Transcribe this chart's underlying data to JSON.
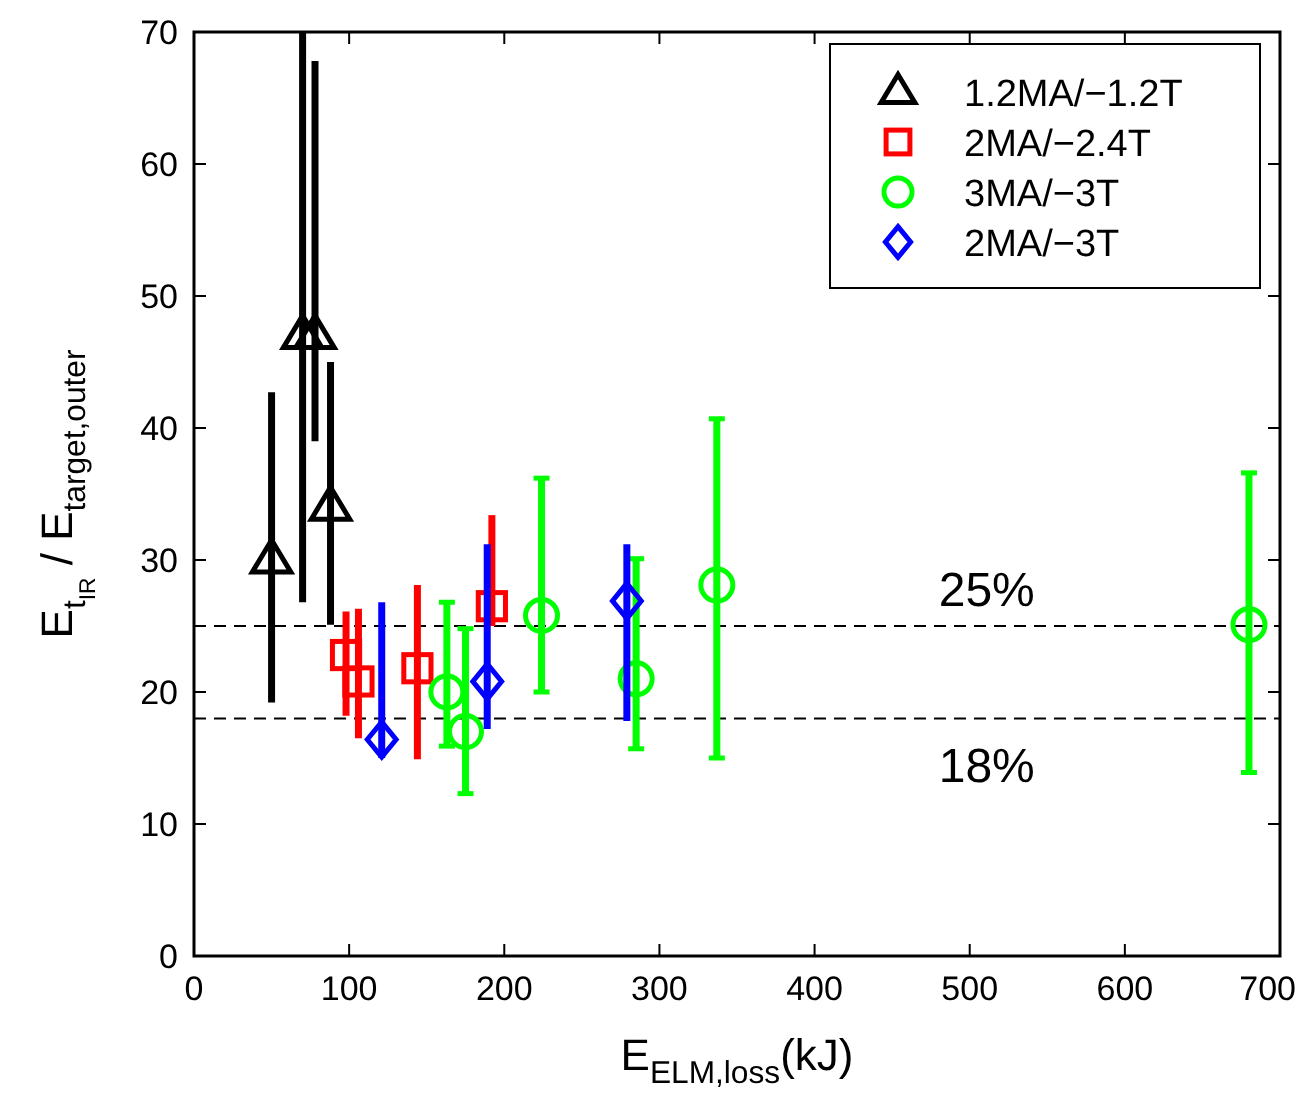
{
  "chart_data": {
    "type": "scatter",
    "xlabel": "E$_{ELM,loss}$(kJ)",
    "ylabel": "E$_{t}$$_{IR}$ / E$_{target,outer}$",
    "xlim": [
      0,
      700
    ],
    "ylim": [
      0,
      70
    ],
    "xticks": [
      0,
      100,
      200,
      300,
      400,
      500,
      600,
      700
    ],
    "yticks": [
      0,
      10,
      20,
      30,
      40,
      50,
      60,
      70
    ],
    "grid": false,
    "legend": "top right",
    "series": [
      {
        "name": "1.2MA/−1.2T",
        "color": "#000000",
        "marker": "triangle",
        "x": [
          50,
          70,
          78,
          88
        ],
        "values": [
          30,
          47,
          47,
          34
        ],
        "errors": [
          [
            19.2,
            42.7
          ],
          [
            26.8,
            70
          ],
          [
            39,
            67.8
          ],
          [
            25.1,
            45
          ]
        ]
      },
      {
        "name": "2MA/−2.4T",
        "color": "#ff0000",
        "marker": "square",
        "x": [
          98,
          106,
          144,
          192
        ],
        "values": [
          22.8,
          20.8,
          21.8,
          26.5
        ],
        "errors": [
          [
            18.2,
            26.1
          ],
          [
            16.5,
            26.3
          ],
          [
            14.9,
            28.1
          ],
          [
            25,
            33.4
          ]
        ]
      },
      {
        "name": "3MA/−3T",
        "color": "#00ff00",
        "marker": "circle",
        "x": [
          163,
          175,
          224,
          285,
          337,
          680
        ],
        "values": [
          20,
          17,
          25.8,
          21,
          28.1,
          25.1
        ],
        "errors": [
          [
            15.9,
            26.8
          ],
          [
            12.3,
            24.8
          ],
          [
            20,
            36.2
          ],
          [
            15.7,
            30.1
          ],
          [
            15,
            40.7
          ],
          [
            13.9,
            36.6
          ]
        ]
      },
      {
        "name": "2MA/−3T",
        "color": "#0000ff",
        "marker": "diamond",
        "x": [
          121,
          189,
          279
        ],
        "values": [
          16.4,
          20.8,
          26.9
        ],
        "errors": [
          [
            15,
            26.8
          ],
          [
            17.2,
            31.2
          ],
          [
            17.8,
            31.2
          ]
        ]
      }
    ],
    "ref_lines": [
      {
        "axis": "y",
        "value": 25,
        "label": "25%",
        "line_style": "dashed"
      },
      {
        "axis": "y",
        "value": 18,
        "label": "18%",
        "line_style": "dashed"
      }
    ]
  }
}
